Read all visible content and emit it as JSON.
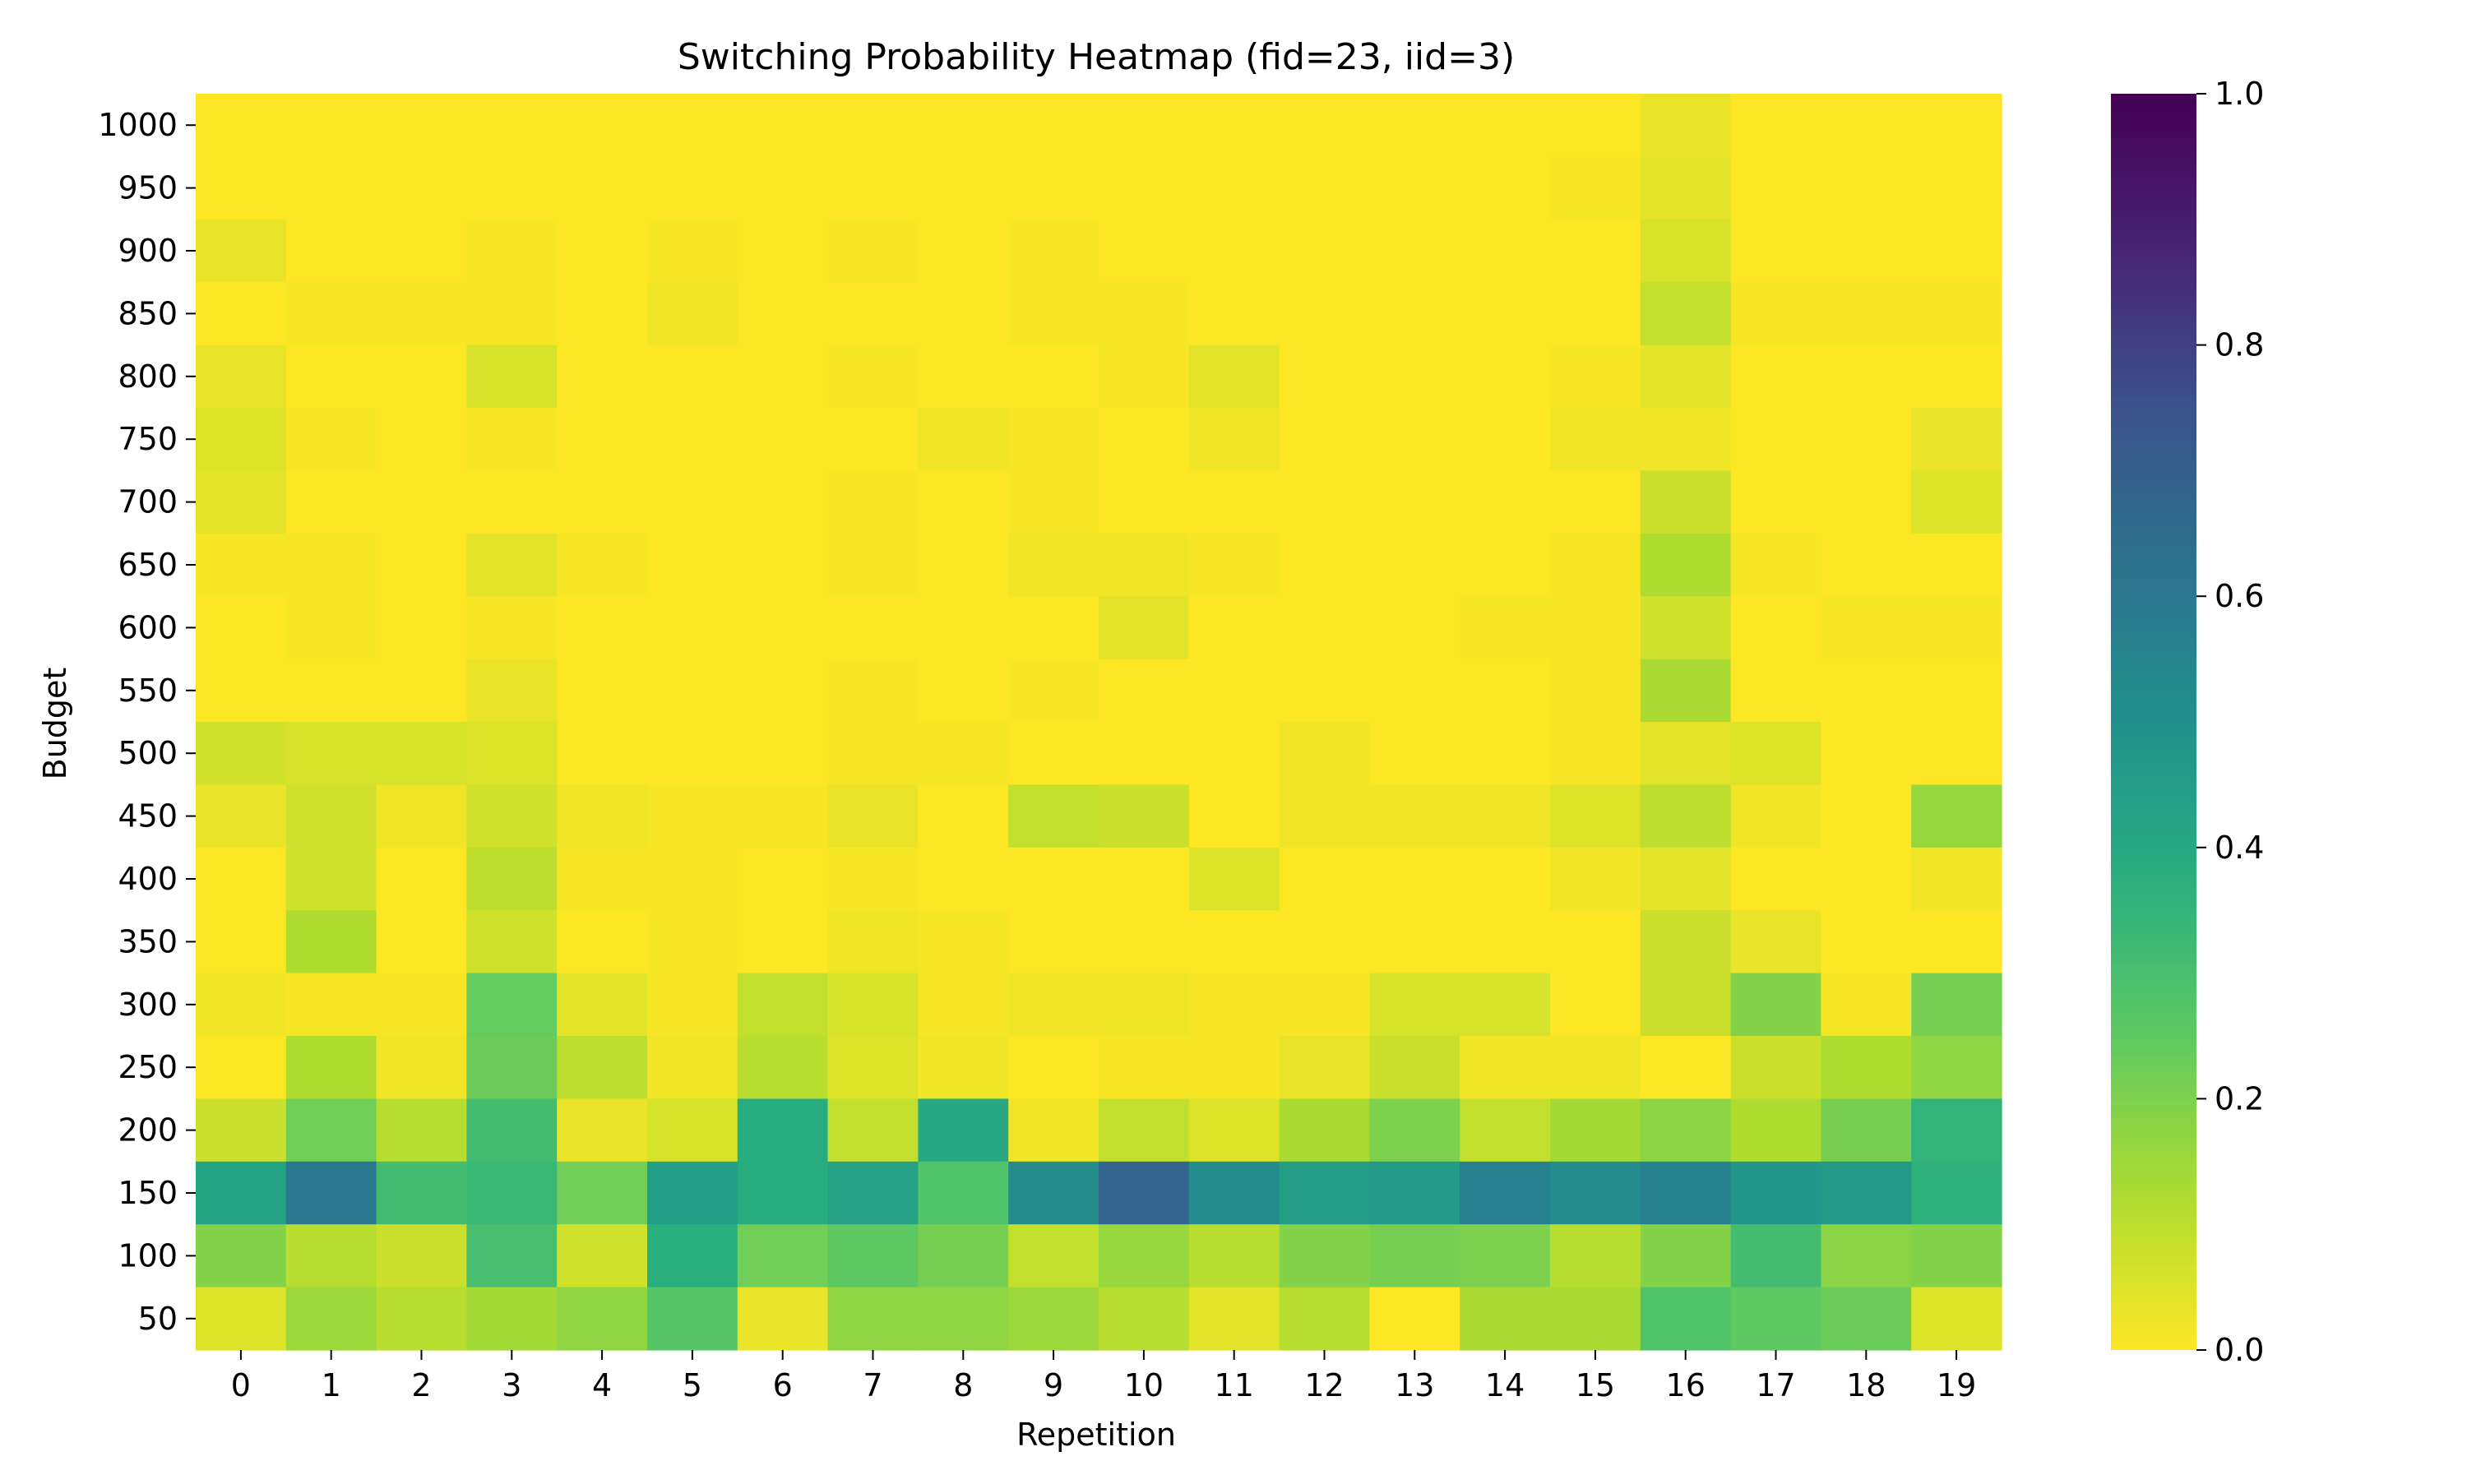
{
  "chart_data": {
    "type": "heatmap",
    "title": "Switching Probability Heatmap (fid=23, iid=3)",
    "xlabel": "Repetition",
    "ylabel": "Budget",
    "x_categories": [
      "0",
      "1",
      "2",
      "3",
      "4",
      "5",
      "6",
      "7",
      "8",
      "9",
      "10",
      "11",
      "12",
      "13",
      "14",
      "15",
      "16",
      "17",
      "18",
      "19"
    ],
    "y_categories": [
      "1000",
      "950",
      "900",
      "850",
      "800",
      "750",
      "700",
      "650",
      "600",
      "550",
      "500",
      "450",
      "400",
      "350",
      "300",
      "250",
      "200",
      "150",
      "100",
      "50"
    ],
    "values": [
      [
        0.0,
        0.0,
        0.0,
        0.0,
        0.0,
        0.0,
        0.0,
        0.0,
        0.0,
        0.0,
        0.0,
        0.0,
        0.0,
        0.0,
        0.0,
        0.0,
        0.03,
        0.0,
        0.0,
        0.0
      ],
      [
        0.0,
        0.0,
        0.0,
        0.0,
        0.0,
        0.0,
        0.0,
        0.0,
        0.0,
        0.0,
        0.0,
        0.0,
        0.0,
        0.0,
        0.0,
        0.01,
        0.04,
        0.0,
        0.0,
        0.0
      ],
      [
        0.03,
        0.0,
        0.0,
        0.01,
        0.0,
        0.01,
        0.0,
        0.01,
        0.0,
        0.01,
        0.0,
        0.0,
        0.0,
        0.0,
        0.0,
        0.0,
        0.06,
        0.0,
        0.0,
        0.0
      ],
      [
        0.0,
        0.01,
        0.01,
        0.01,
        0.0,
        0.02,
        0.0,
        0.0,
        0.0,
        0.01,
        0.01,
        0.0,
        0.0,
        0.0,
        0.0,
        0.0,
        0.09,
        0.01,
        0.01,
        0.01
      ],
      [
        0.03,
        0.0,
        0.0,
        0.06,
        0.0,
        0.0,
        0.0,
        0.01,
        0.0,
        0.0,
        0.01,
        0.04,
        0.0,
        0.0,
        0.0,
        0.01,
        0.04,
        0.0,
        0.0,
        0.0
      ],
      [
        0.05,
        0.01,
        0.0,
        0.01,
        0.0,
        0.0,
        0.0,
        0.0,
        0.02,
        0.01,
        0.0,
        0.02,
        0.0,
        0.0,
        0.0,
        0.02,
        0.02,
        0.0,
        0.0,
        0.03
      ],
      [
        0.04,
        0.0,
        0.0,
        0.0,
        0.0,
        0.0,
        0.0,
        0.01,
        0.0,
        0.01,
        0.0,
        0.0,
        0.0,
        0.0,
        0.0,
        0.0,
        0.08,
        0.0,
        0.0,
        0.05
      ],
      [
        0.01,
        0.01,
        0.0,
        0.04,
        0.01,
        0.0,
        0.0,
        0.01,
        0.0,
        0.02,
        0.02,
        0.01,
        0.0,
        0.0,
        0.0,
        0.01,
        0.12,
        0.01,
        0.0,
        0.0
      ],
      [
        0.0,
        0.01,
        0.0,
        0.01,
        0.0,
        0.0,
        0.0,
        0.0,
        0.0,
        0.0,
        0.04,
        0.0,
        0.0,
        0.0,
        0.01,
        0.01,
        0.07,
        0.0,
        0.01,
        0.01
      ],
      [
        0.0,
        0.0,
        0.0,
        0.03,
        0.0,
        0.0,
        0.0,
        0.01,
        0.0,
        0.01,
        0.0,
        0.0,
        0.0,
        0.0,
        0.0,
        0.01,
        0.13,
        0.0,
        0.0,
        0.0
      ],
      [
        0.07,
        0.06,
        0.06,
        0.05,
        0.0,
        0.0,
        0.0,
        0.01,
        0.01,
        0.0,
        0.0,
        0.0,
        0.02,
        0.0,
        0.0,
        0.01,
        0.04,
        0.05,
        0.0,
        0.0
      ],
      [
        0.03,
        0.07,
        0.02,
        0.07,
        0.02,
        0.01,
        0.01,
        0.03,
        0.0,
        0.09,
        0.08,
        0.0,
        0.02,
        0.02,
        0.02,
        0.05,
        0.1,
        0.02,
        0.0,
        0.16
      ],
      [
        0.0,
        0.07,
        0.0,
        0.1,
        0.01,
        0.01,
        0.0,
        0.01,
        0.0,
        0.0,
        0.0,
        0.05,
        0.0,
        0.0,
        0.0,
        0.02,
        0.04,
        0.0,
        0.0,
        0.02
      ],
      [
        0.0,
        0.12,
        0.0,
        0.07,
        0.0,
        0.01,
        0.0,
        0.02,
        0.01,
        0.0,
        0.0,
        0.0,
        0.0,
        0.0,
        0.0,
        0.0,
        0.08,
        0.03,
        0.0,
        0.0
      ],
      [
        0.02,
        0.01,
        0.01,
        0.24,
        0.04,
        0.01,
        0.09,
        0.06,
        0.01,
        0.02,
        0.02,
        0.01,
        0.01,
        0.06,
        0.06,
        0.0,
        0.08,
        0.19,
        0.01,
        0.21
      ],
      [
        0.0,
        0.12,
        0.02,
        0.23,
        0.1,
        0.02,
        0.11,
        0.05,
        0.02,
        0.0,
        0.01,
        0.01,
        0.03,
        0.08,
        0.02,
        0.02,
        0.0,
        0.08,
        0.12,
        0.17
      ],
      [
        0.08,
        0.22,
        0.11,
        0.31,
        0.03,
        0.06,
        0.38,
        0.09,
        0.4,
        0.02,
        0.09,
        0.05,
        0.13,
        0.2,
        0.09,
        0.14,
        0.18,
        0.12,
        0.21,
        0.35
      ],
      [
        0.42,
        0.6,
        0.31,
        0.33,
        0.22,
        0.44,
        0.38,
        0.43,
        0.28,
        0.53,
        0.68,
        0.52,
        0.45,
        0.46,
        0.57,
        0.52,
        0.56,
        0.48,
        0.46,
        0.36
      ],
      [
        0.19,
        0.11,
        0.08,
        0.3,
        0.07,
        0.37,
        0.22,
        0.25,
        0.21,
        0.09,
        0.16,
        0.11,
        0.19,
        0.21,
        0.2,
        0.11,
        0.19,
        0.31,
        0.18,
        0.19
      ],
      [
        0.05,
        0.15,
        0.11,
        0.14,
        0.17,
        0.27,
        0.03,
        0.17,
        0.17,
        0.15,
        0.11,
        0.04,
        0.11,
        0.0,
        0.13,
        0.13,
        0.28,
        0.25,
        0.23,
        0.05
      ]
    ],
    "colorbar": {
      "cmap": "viridis_r",
      "vmin": 0.0,
      "vmax": 1.0,
      "ticks": [
        "0.0",
        "0.2",
        "0.4",
        "0.6",
        "0.8",
        "1.0"
      ]
    },
    "grid": false,
    "legend": "colorbar-right"
  }
}
